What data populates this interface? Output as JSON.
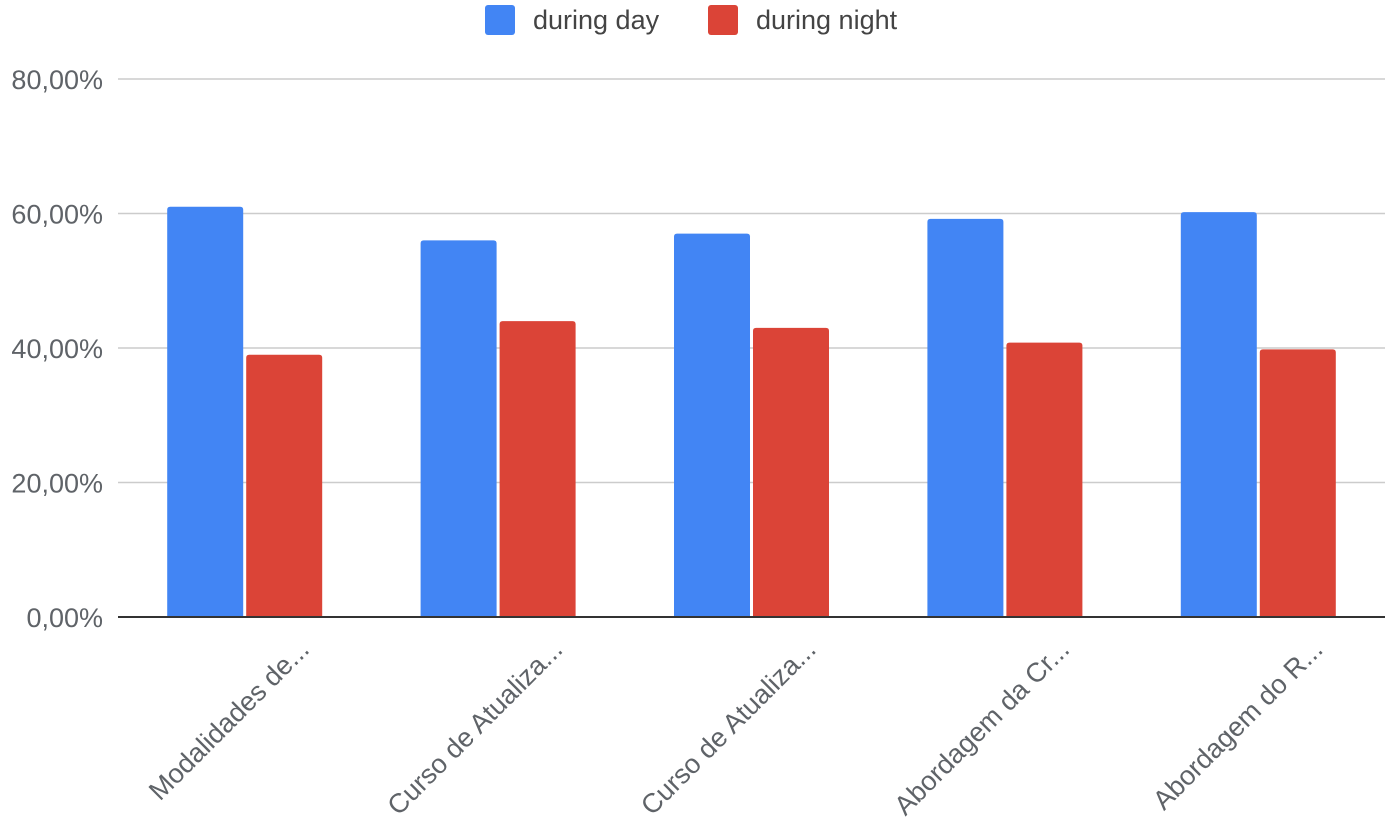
{
  "chart_data": {
    "type": "bar",
    "title": "",
    "xlabel": "",
    "ylabel": "",
    "categories": [
      "Modalidades de...",
      "Curso de Atualiza...",
      "Curso de Atualiza...",
      "Abordagem da Cr...",
      "Abordagem do R..."
    ],
    "series": [
      {
        "name": "during day",
        "color": "#4285f4",
        "values": [
          61.0,
          56.0,
          57.0,
          59.2,
          60.2
        ]
      },
      {
        "name": "during night",
        "color": "#db4437",
        "values": [
          39.0,
          44.0,
          43.0,
          40.8,
          39.8
        ]
      }
    ],
    "ylim": [
      0,
      80
    ],
    "yticks": [
      {
        "value": 0,
        "label": "0,00%"
      },
      {
        "value": 20,
        "label": "20,00%"
      },
      {
        "value": 40,
        "label": "40,00%"
      },
      {
        "value": 60,
        "label": "60,00%"
      },
      {
        "value": 80,
        "label": "80,00%"
      }
    ],
    "grid": true,
    "legend_position": "top-center"
  }
}
